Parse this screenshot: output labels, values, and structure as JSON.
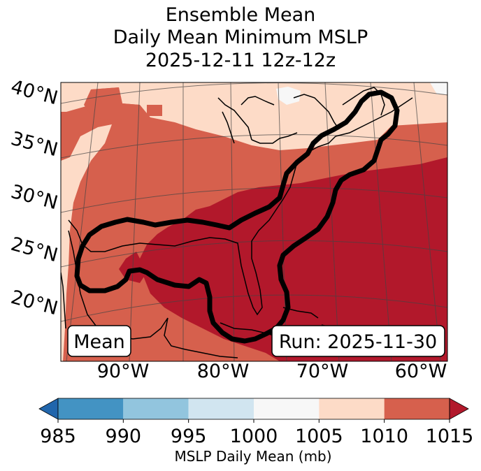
{
  "title": {
    "line1": "Ensemble Mean",
    "line2": "Daily Mean Minimum MSLP",
    "line3": "2025-12-11 12z-12z"
  },
  "map": {
    "lat_labels": [
      "40°N",
      "35°N",
      "30°N",
      "25°N",
      "20°N"
    ],
    "lon_labels": [
      "90°W",
      "80°W",
      "70°W",
      "60°W"
    ],
    "mean_box": "Mean",
    "run_box": "Run: 2025-11-30",
    "colors": {
      "c1005_1010": "#fddbc7",
      "c1010_1015": "#d6604d",
      "c1015_plus": "#b2182b",
      "c1000_1005": "#f7f7f7",
      "contour": "#000000"
    }
  },
  "colorbar": {
    "ticks": [
      "985",
      "990",
      "995",
      "1000",
      "1005",
      "1010",
      "1015"
    ],
    "label": "MSLP Daily Mean (mb)",
    "bins": [
      {
        "range": "<985",
        "color": "#2166ac"
      },
      {
        "range": "985-990",
        "color": "#4393c3"
      },
      {
        "range": "990-995",
        "color": "#92c5de"
      },
      {
        "range": "995-1000",
        "color": "#d1e5f0"
      },
      {
        "range": "1000-1005",
        "color": "#f7f7f7"
      },
      {
        "range": "1005-1010",
        "color": "#fddbc7"
      },
      {
        "range": "1010-1015",
        "color": "#d6604d"
      },
      {
        "range": ">1015",
        "color": "#b2182b"
      }
    ]
  }
}
